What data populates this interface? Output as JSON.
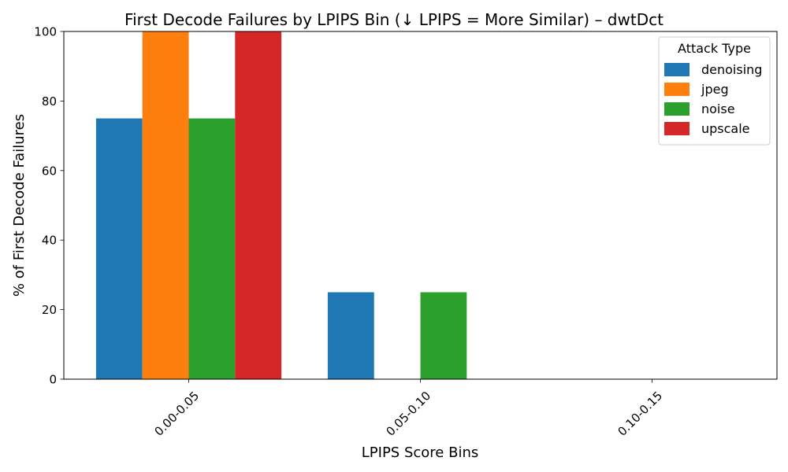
{
  "chart_data": {
    "type": "bar",
    "title": "First Decode Failures by LPIPS Bin (↓ LPIPS = More Similar) – dwtDct",
    "xlabel": "LPIPS Score Bins",
    "ylabel": "% of First Decode Failures",
    "categories": [
      "0.00-0.05",
      "0.05-0.10",
      "0.10-0.15"
    ],
    "series": [
      {
        "name": "denoising",
        "color": "#1f77b4",
        "values": [
          75,
          25,
          0
        ]
      },
      {
        "name": "jpeg",
        "color": "#ff7f0e",
        "values": [
          100,
          0,
          0
        ]
      },
      {
        "name": "noise",
        "color": "#2ca02c",
        "values": [
          75,
          25,
          0
        ]
      },
      {
        "name": "upscale",
        "color": "#d62728",
        "values": [
          100,
          0,
          0
        ]
      }
    ],
    "ylim": [
      0,
      100
    ],
    "yticks": [
      "0",
      "20",
      "40",
      "60",
      "80",
      "100"
    ],
    "grid": false,
    "legend": {
      "title": "Attack Type",
      "placement": "top-right"
    }
  }
}
